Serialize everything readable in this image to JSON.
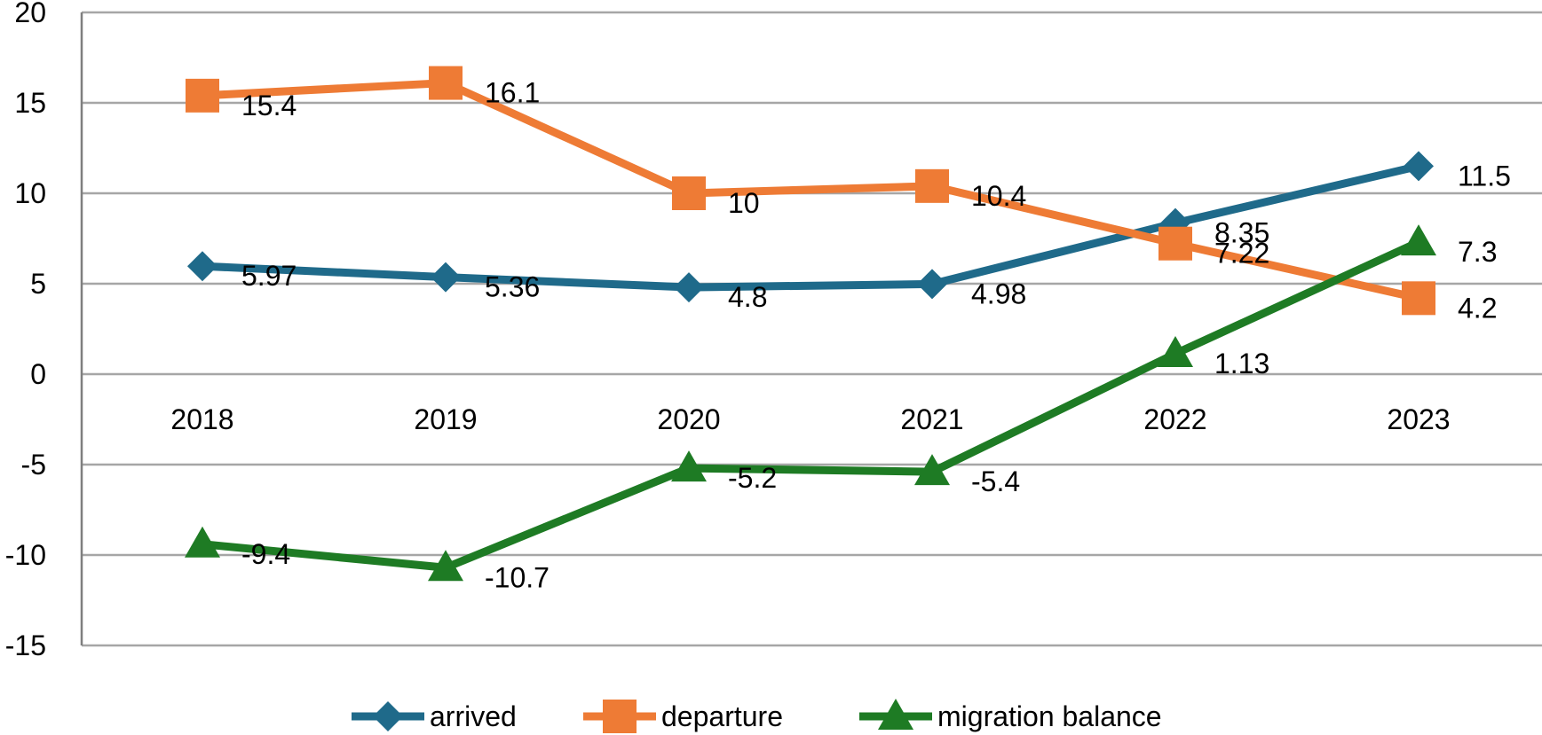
{
  "chart_data": {
    "type": "line",
    "categories": [
      "2018",
      "2019",
      "2020",
      "2021",
      "2022",
      "2023"
    ],
    "series": [
      {
        "name": "arrived",
        "color": "#1f6a8a",
        "marker": "diamond",
        "values": [
          5.97,
          5.36,
          4.8,
          4.98,
          8.35,
          11.5
        ],
        "labels": [
          "5.97",
          "5.36",
          "4.8",
          "4.98",
          "8.35",
          "11.5"
        ]
      },
      {
        "name": "departure",
        "color": "#ee7b35",
        "marker": "square",
        "values": [
          15.4,
          16.1,
          10,
          10.4,
          7.22,
          4.2
        ],
        "labels": [
          "15.4",
          "16.1",
          "10",
          "10.4",
          "7.22",
          "4.2"
        ]
      },
      {
        "name": "migration balance",
        "color": "#1e7b24",
        "marker": "triangle",
        "values": [
          -9.4,
          -10.7,
          -5.2,
          -5.4,
          1.13,
          7.3
        ],
        "labels": [
          "-9.4",
          "-10.7",
          "-5.2",
          "-5.4",
          "1.13",
          "7.3"
        ]
      }
    ],
    "title": "",
    "xlabel": "",
    "ylabel": "",
    "ylim": [
      -15,
      20
    ],
    "yticks": [
      20,
      15,
      10,
      5,
      0,
      -5,
      -10,
      -15
    ],
    "ytick_labels": [
      "20",
      "15",
      "10",
      "5",
      "0",
      "-5",
      "-10",
      "-15"
    ],
    "grid": true,
    "legend": "bottom-center",
    "gridline_color": "#a6a6a6",
    "axis_color": "#7f7f7f"
  }
}
